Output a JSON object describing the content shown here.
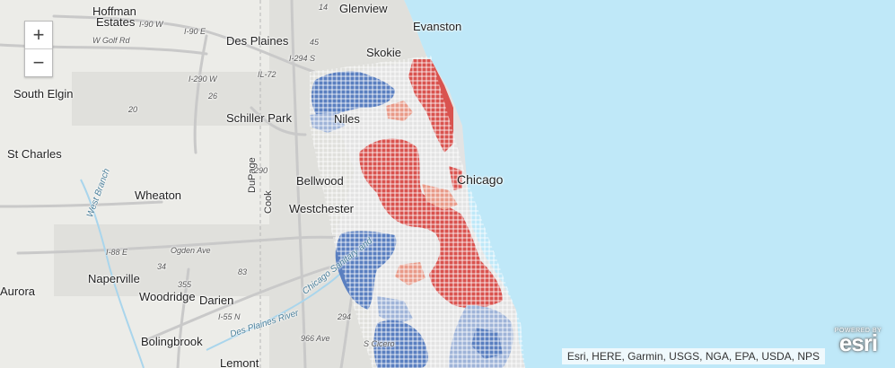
{
  "labels": {
    "hoffman_estates_1": "Hoffman",
    "hoffman_estates_2": "Estates",
    "glenview": "Glenview",
    "evanston": "Evanston",
    "des_plaines": "Des Plaines",
    "skokie": "Skokie",
    "south_elgin": "South Elgin",
    "schiller_park": "Schiller Park",
    "niles": "Niles",
    "st_charles": "St Charles",
    "chicago": "Chicago",
    "bellwood": "Bellwood",
    "wheaton": "Wheaton",
    "westchester": "Westchester",
    "naperville": "Naperville",
    "woodridge": "Woodridge",
    "darien": "Darien",
    "aurora": "Aurora",
    "bolingbrook": "Bolingbrook",
    "lemont": "Lemont",
    "dupage": "DuPage",
    "cook": "Cook"
  },
  "roads": {
    "i90": "I-90 W",
    "i90e": "I-90 E",
    "w_golf": "W Golf Rd",
    "i294": "I-294 S",
    "il72": "IL-72",
    "i290": "I-290 W",
    "i88e": "I-88 E",
    "ogden": "Ogden Ave",
    "i55": "I-55 N",
    "s_cicero": "S Cicero",
    "r26": "26",
    "r20": "20",
    "r290": "290",
    "r294": "294",
    "r45": "45",
    "r355": "355",
    "r83": "83",
    "r34": "34",
    "r966": "966 Ave",
    "r14": "14"
  },
  "water": {
    "des_plaines_river": "Des Plaines River",
    "chicago_sanitary": "Chicago Sanitary and",
    "w_branch": "West Branch"
  },
  "controls": {
    "zoom_in": "+",
    "zoom_out": "−"
  },
  "attribution": "Esri, HERE, Garmin, USGS, NGA, EPA, USDA, NPS",
  "esri_logo": {
    "powered_by": "POWERED BY",
    "name": "esri"
  },
  "colors": {
    "lake": "#bfe8f8",
    "land": "#ecece8",
    "red": "#d9534f",
    "red_light": "#e89a88",
    "blue": "#5a7fc0",
    "blue_light": "#9fb4d8",
    "neutral": "#e6e6e6"
  }
}
